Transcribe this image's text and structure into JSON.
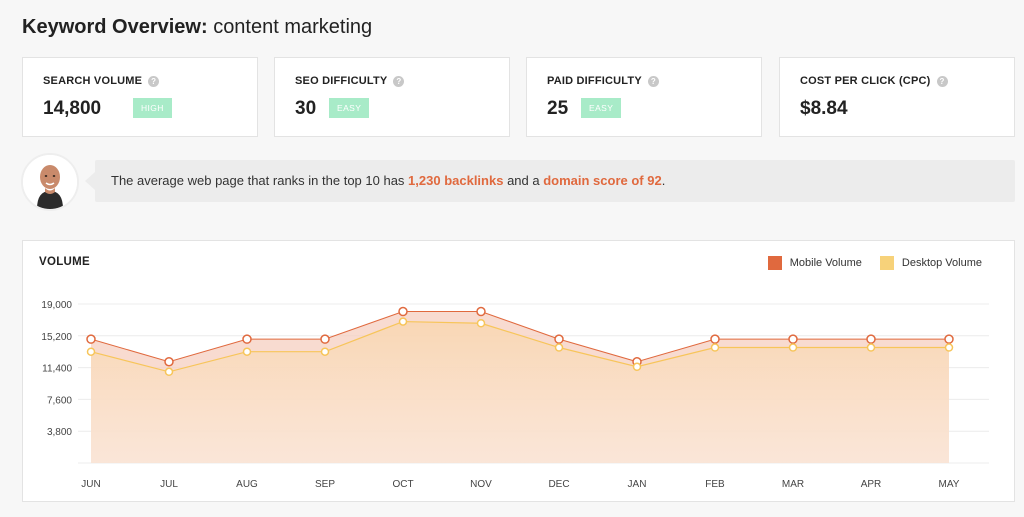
{
  "header": {
    "title_bold": "Keyword Overview:",
    "title_keyword": "content marketing"
  },
  "metrics": [
    {
      "label": "SEARCH VOLUME",
      "value": "14,800",
      "badge": "HIGH"
    },
    {
      "label": "SEO DIFFICULTY",
      "value": "30",
      "badge": "EASY"
    },
    {
      "label": "PAID DIFFICULTY",
      "value": "25",
      "badge": "EASY"
    },
    {
      "label": "COST PER CLICK (CPC)",
      "value": "$8.84",
      "badge": ""
    }
  ],
  "tip": {
    "prefix": "The average web page that ranks in the top 10 has ",
    "highlight1": "1,230 backlinks",
    "middle": " and a ",
    "highlight2": "domain score of 92",
    "suffix": "."
  },
  "colors": {
    "mobile": "#e0693e",
    "desktop": "#f7d27a",
    "badge": "#a8ebc8",
    "highlight": "#e0693e"
  },
  "chart_data": {
    "type": "area",
    "title": "VOLUME",
    "categories": [
      "JUN",
      "JUL",
      "AUG",
      "SEP",
      "OCT",
      "NOV",
      "DEC",
      "JAN",
      "FEB",
      "MAR",
      "APR",
      "MAY"
    ],
    "yticks": [
      "19,000",
      "15,200",
      "11,400",
      "7,600",
      "3,800"
    ],
    "ylim": [
      0,
      19000
    ],
    "series": [
      {
        "name": "Mobile Volume",
        "values": [
          14800,
          12100,
          14800,
          14800,
          18100,
          18100,
          14800,
          12100,
          14800,
          14800,
          14800,
          14800
        ]
      },
      {
        "name": "Desktop Volume",
        "values": [
          13300,
          10900,
          13300,
          13300,
          16900,
          16700,
          13800,
          11500,
          13800,
          13800,
          13800,
          13800
        ]
      }
    ],
    "legend_position": "top-right"
  }
}
